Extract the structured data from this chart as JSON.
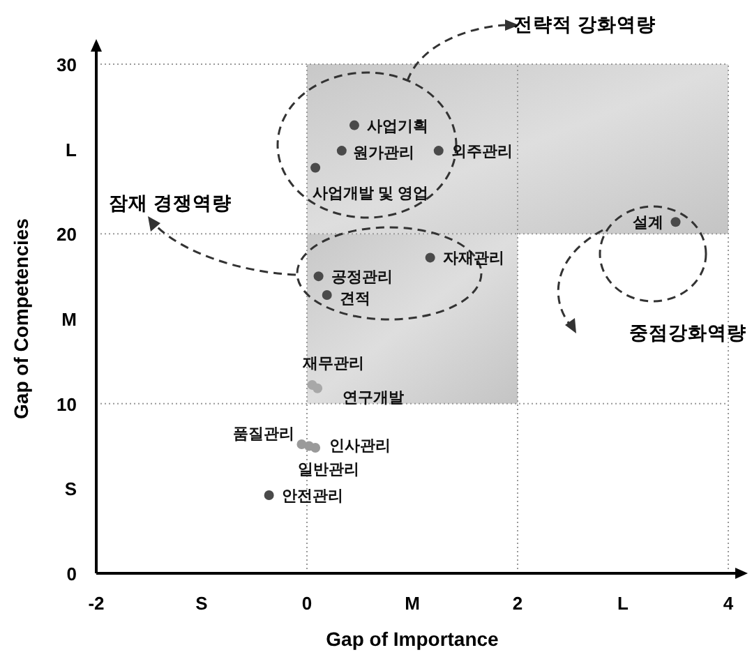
{
  "chart_data": {
    "type": "scatter",
    "xlabel": "Gap of Importance",
    "ylabel": "Gap of Competencies",
    "xlim": [
      -2,
      4
    ],
    "ylim": [
      0,
      30
    ],
    "xticks": [
      -2,
      {
        "value": -1,
        "label": "S"
      },
      0,
      {
        "value": 1,
        "label": "M"
      },
      2,
      {
        "value": 3,
        "label": "L"
      },
      4
    ],
    "yticks": [
      0,
      {
        "value": 5,
        "label": "S"
      },
      10,
      {
        "value": 15,
        "label": "M"
      },
      20,
      {
        "value": 25,
        "label": "L"
      },
      30
    ],
    "grid": true,
    "marker": "circle",
    "series": [
      {
        "x": [
          0.45,
          0.33,
          1.25,
          0.08,
          3.5,
          1.17,
          0.11,
          0.19,
          0.05,
          0.1,
          -0.05,
          0.08,
          0.02,
          -0.36
        ],
        "values": [
          26.4,
          24.9,
          24.9,
          23.9,
          20.7,
          18.6,
          17.5,
          16.4,
          11.1,
          10.9,
          7.6,
          7.4,
          7.5,
          4.6
        ],
        "colors": [
          "#4a4a4a",
          "#4a4a4a",
          "#4a4a4a",
          "#4a4a4a",
          "#4a4a4a",
          "#4a4a4a",
          "#4a4a4a",
          "#4a4a4a",
          "#a8a8a8",
          "#a8a8a8",
          "#9a9a9a",
          "#9a9a9a",
          "#9a9a9a",
          "#4a4a4a"
        ]
      }
    ],
    "annotations": [
      {
        "text": "사업기획",
        "x": 0.45,
        "y": 26.4
      },
      {
        "text": "원가관리",
        "x": 0.33,
        "y": 24.9
      },
      {
        "text": "외주관리",
        "x": 1.25,
        "y": 24.9
      },
      {
        "text": "사업개발 및 영업",
        "x": 0.08,
        "y": 23.9
      },
      {
        "text": "설계",
        "x": 3.5,
        "y": 20.7
      },
      {
        "text": "자재관리",
        "x": 1.17,
        "y": 18.6
      },
      {
        "text": "공정관리",
        "x": 0.11,
        "y": 17.5
      },
      {
        "text": "견적",
        "x": 0.19,
        "y": 16.4
      },
      {
        "text": "재무관리",
        "x": 0.05,
        "y": 11.1
      },
      {
        "text": "연구개발",
        "x": 0.1,
        "y": 10.9
      },
      {
        "text": "품질관리",
        "x": -0.05,
        "y": 7.6
      },
      {
        "text": "인사관리",
        "x": 0.08,
        "y": 7.4
      },
      {
        "text": "일반관리",
        "x": 0.02,
        "y": 7.5
      },
      {
        "text": "안전관리",
        "x": -0.36,
        "y": 4.6
      },
      "전략적 강화역량",
      "잠재 경쟁역량",
      "중점강화역량"
    ]
  }
}
